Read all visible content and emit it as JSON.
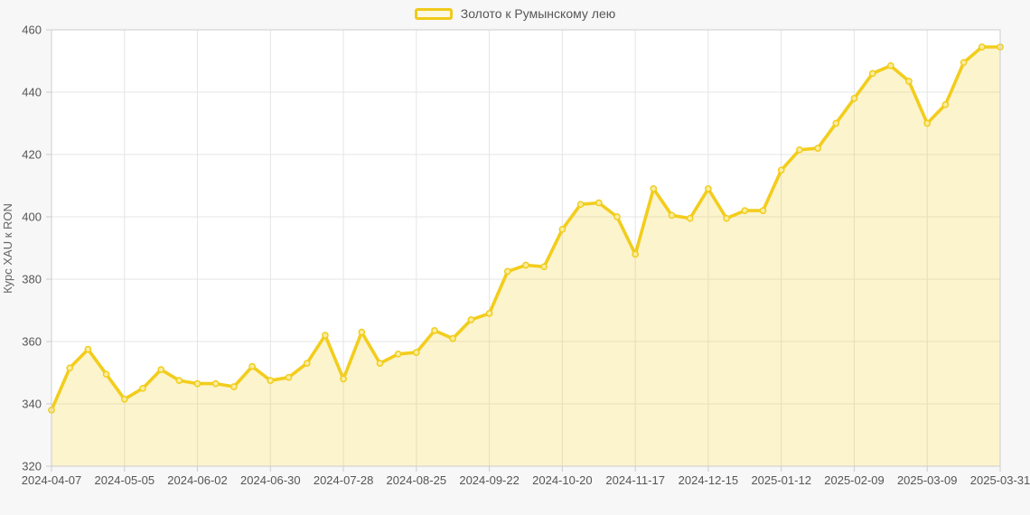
{
  "chart_data": {
    "type": "line",
    "title": "",
    "legend": "Золото к Румынскому лею",
    "legend_position": "top-center",
    "ylabel": "Курс XAU к RON",
    "xlabel": "",
    "ylim": [
      320,
      460
    ],
    "ytick_step": 20,
    "grid": true,
    "markers": true,
    "x": [
      "2024-04-07",
      "2024-04-14",
      "2024-04-21",
      "2024-04-28",
      "2024-05-05",
      "2024-05-12",
      "2024-05-19",
      "2024-05-26",
      "2024-06-02",
      "2024-06-09",
      "2024-06-16",
      "2024-06-23",
      "2024-06-30",
      "2024-07-07",
      "2024-07-14",
      "2024-07-21",
      "2024-07-28",
      "2024-08-04",
      "2024-08-11",
      "2024-08-18",
      "2024-08-25",
      "2024-09-01",
      "2024-09-08",
      "2024-09-15",
      "2024-09-22",
      "2024-09-29",
      "2024-10-06",
      "2024-10-13",
      "2024-10-20",
      "2024-10-27",
      "2024-11-03",
      "2024-11-10",
      "2024-11-17",
      "2024-11-24",
      "2024-12-01",
      "2024-12-08",
      "2024-12-15",
      "2024-12-22",
      "2024-12-29",
      "2025-01-05",
      "2025-01-12",
      "2025-01-19",
      "2025-01-26",
      "2025-02-02",
      "2025-02-09",
      "2025-02-16",
      "2025-02-23",
      "2025-03-02",
      "2025-03-09",
      "2025-03-16",
      "2025-03-23",
      "2025-03-30",
      "2025-03-31"
    ],
    "values": [
      338,
      351.5,
      357.5,
      349.5,
      341.5,
      345,
      351,
      347.5,
      346.5,
      346.5,
      345.5,
      352,
      347.5,
      348.5,
      353,
      362,
      348,
      363,
      353,
      356,
      356.5,
      363.5,
      361,
      367,
      369,
      382.5,
      384.5,
      384,
      396,
      404,
      404.5,
      400,
      388,
      409,
      400.5,
      399.5,
      409,
      399.5,
      402,
      402,
      415,
      421.5,
      422,
      430,
      438,
      446,
      448.5,
      443.5,
      430,
      436,
      449.5,
      454.5,
      454.5
    ],
    "x_tick_every": 4,
    "x_tick_labels": [
      "2024-04-07",
      "2024-05-05",
      "2024-06-02",
      "2024-06-30",
      "2024-07-28",
      "2024-08-25",
      "2024-09-22",
      "2024-10-20",
      "2024-11-17",
      "2024-12-15",
      "2025-01-12",
      "2025-02-09",
      "2025-03-09",
      "2025-03-31"
    ],
    "colors": {
      "line": "#f2cd1c",
      "marker_fill": "#f9eda0",
      "area_fill": "rgba(242,205,28,0.22)",
      "background": "#f7f7f7",
      "plot_background": "#ffffff",
      "gridline": "#e4e4e4",
      "axis_border": "#cdcdcd",
      "tick": "#cdcdcd",
      "axis_text": "#555555"
    }
  }
}
